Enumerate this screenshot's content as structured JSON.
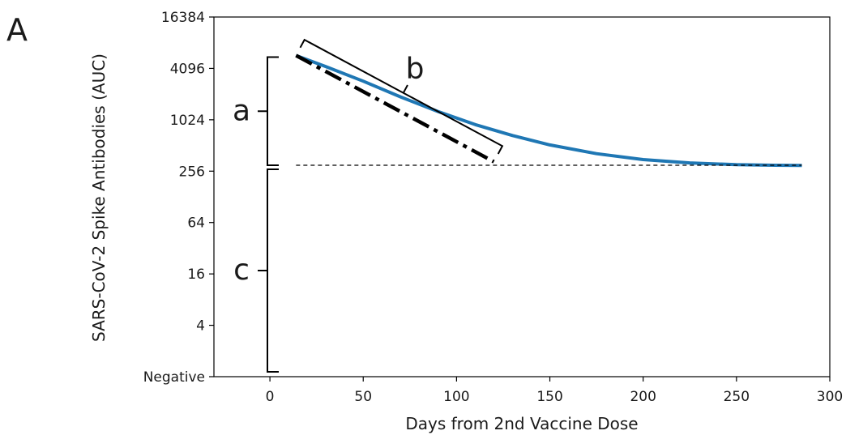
{
  "chart_data": {
    "type": "line",
    "panel_label": "A",
    "xlabel": "Days from 2nd Vaccine Dose",
    "ylabel": "SARS-CoV-2 Spike Antibodies (AUC)",
    "xlim": [
      -30,
      300
    ],
    "ylim": [
      1,
      16384
    ],
    "y_scale": "log2",
    "x_ticks": [
      0,
      50,
      100,
      150,
      200,
      250,
      300
    ],
    "y_ticks": [
      {
        "value": 1,
        "label": "Negative"
      },
      {
        "value": 4,
        "label": "4"
      },
      {
        "value": 16,
        "label": "16"
      },
      {
        "value": 64,
        "label": "64"
      },
      {
        "value": 256,
        "label": "256"
      },
      {
        "value": 1024,
        "label": "1024"
      },
      {
        "value": 4096,
        "label": "4096"
      },
      {
        "value": 16384,
        "label": "16384"
      }
    ],
    "grid": false,
    "series": [
      {
        "color": "#1f77b4",
        "style": "solid",
        "x": [
          14,
          30,
          50,
          70,
          90,
          110,
          130,
          150,
          175,
          200,
          225,
          250,
          270,
          285
        ],
        "y": [
          5800,
          4300,
          2900,
          1900,
          1280,
          900,
          670,
          520,
          410,
          350,
          320,
          305,
          300,
          299
        ]
      }
    ],
    "annotations": {
      "slope_line": {
        "color": "#000000",
        "style": "dash-dot",
        "x": [
          14,
          120
        ],
        "y": [
          5800,
          330
        ]
      },
      "baseline": {
        "color": "#000000",
        "style": "dashed",
        "x": [
          14,
          285
        ],
        "y": [
          300,
          300
        ]
      },
      "labels": [
        {
          "text": "a",
          "note": "bracket spanning peak to baseline"
        },
        {
          "text": "b",
          "note": "bracket along the decay slope"
        },
        {
          "text": "c",
          "note": "bracket spanning baseline to negative"
        }
      ]
    }
  }
}
